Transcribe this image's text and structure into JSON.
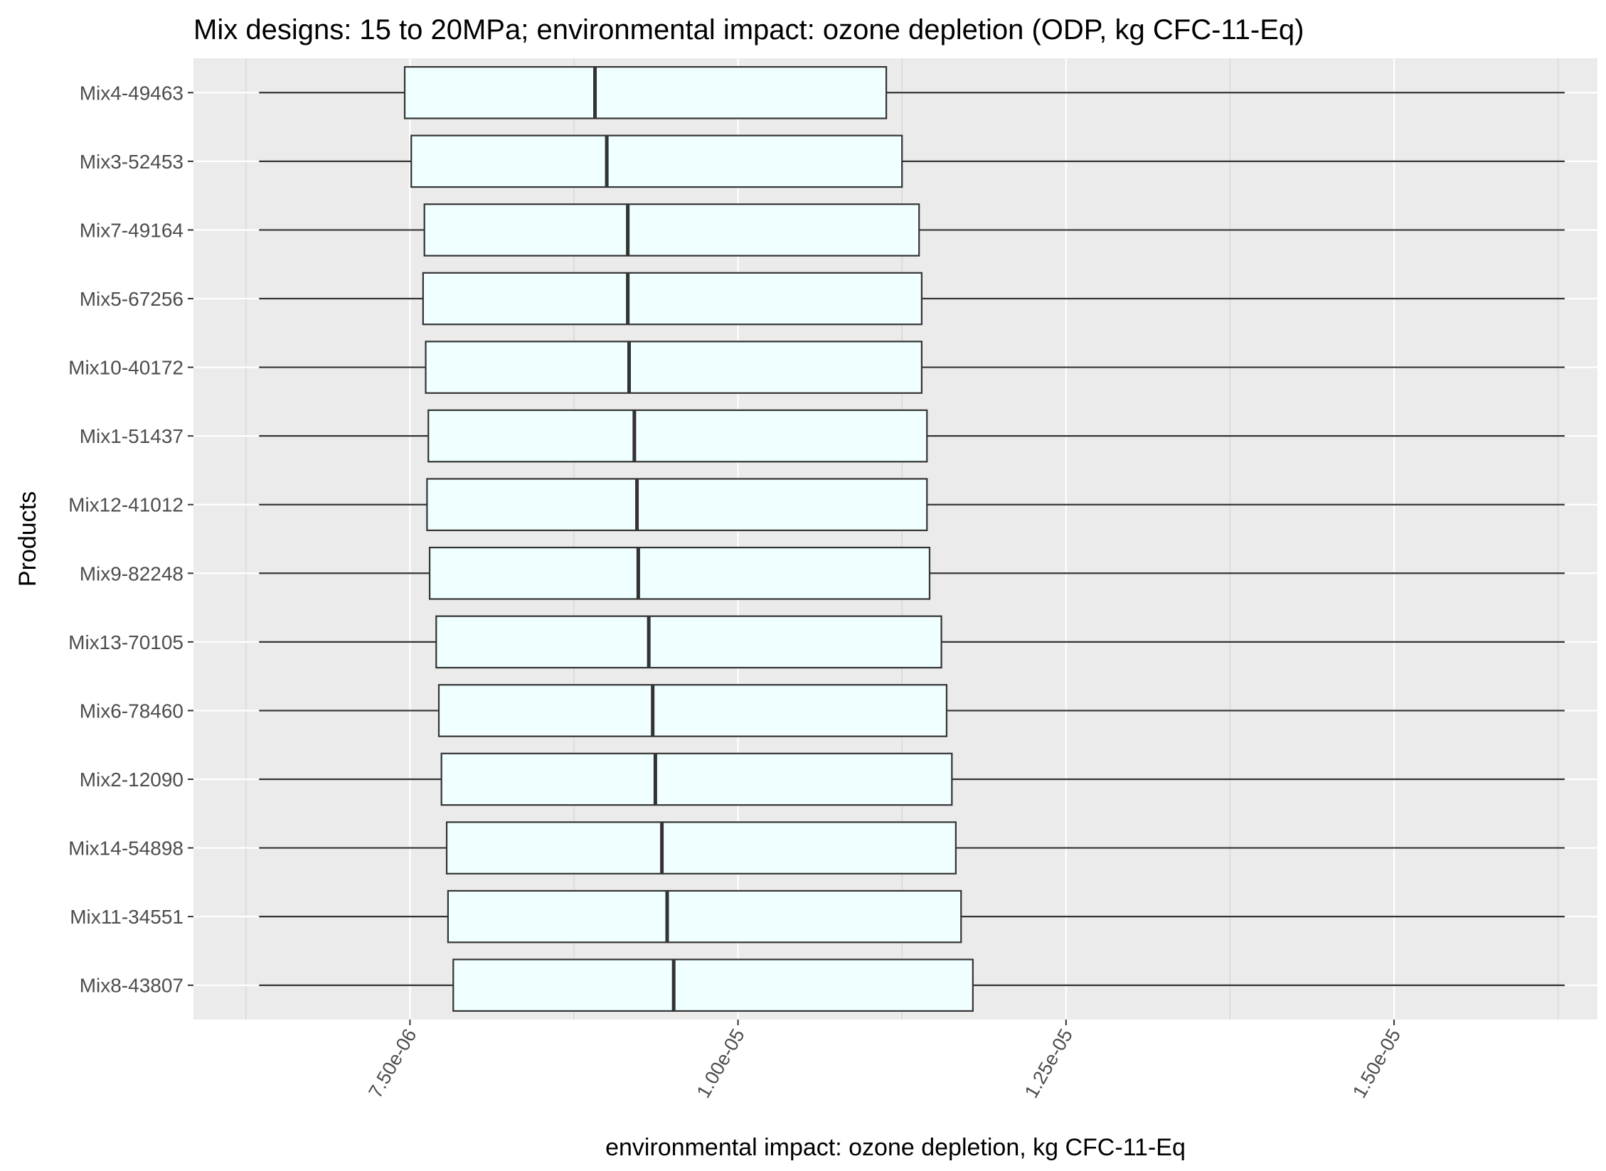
{
  "chart_data": {
    "type": "boxplot",
    "orientation": "horizontal",
    "title": "Mix designs: 15 to 20MPa; environmental impact: ozone depletion (ODP, kg CFC-11-Eq)",
    "xlabel": "environmental impact: ozone depletion, kg CFC-11-Eq",
    "ylabel": "Products",
    "xlim": [
      5.85e-06,
      1.655e-05
    ],
    "x_ticks": [
      {
        "value": 7.5e-06,
        "label": "7.50e-06"
      },
      {
        "value": 1e-05,
        "label": "1.00e-05"
      },
      {
        "value": 1.25e-05,
        "label": "1.25e-05"
      },
      {
        "value": 1.5e-05,
        "label": "1.50e-05"
      }
    ],
    "x_minor_ticks": [
      6.25e-06,
      8.75e-06,
      1.125e-05,
      1.375e-05,
      1.625e-05
    ],
    "grid": true,
    "box_fill": "#f0ffff",
    "panel_background": "#ebebeb",
    "products": [
      {
        "name": "Mix4-49463",
        "min": 6.35e-06,
        "q1": 7.46e-06,
        "median": 8.91e-06,
        "q3": 1.113e-05,
        "max": 1.63e-05
      },
      {
        "name": "Mix3-52453",
        "min": 6.35e-06,
        "q1": 7.51e-06,
        "median": 9e-06,
        "q3": 1.125e-05,
        "max": 1.63e-05
      },
      {
        "name": "Mix7-49164",
        "min": 6.35e-06,
        "q1": 7.61e-06,
        "median": 9.16e-06,
        "q3": 1.138e-05,
        "max": 1.63e-05
      },
      {
        "name": "Mix5-67256",
        "min": 6.35e-06,
        "q1": 7.6e-06,
        "median": 9.16e-06,
        "q3": 1.14e-05,
        "max": 1.63e-05
      },
      {
        "name": "Mix10-40172",
        "min": 6.35e-06,
        "q1": 7.62e-06,
        "median": 9.17e-06,
        "q3": 1.14e-05,
        "max": 1.63e-05
      },
      {
        "name": "Mix1-51437",
        "min": 6.35e-06,
        "q1": 7.64e-06,
        "median": 9.21e-06,
        "q3": 1.144e-05,
        "max": 1.63e-05
      },
      {
        "name": "Mix12-41012",
        "min": 6.35e-06,
        "q1": 7.63e-06,
        "median": 9.23e-06,
        "q3": 1.144e-05,
        "max": 1.63e-05
      },
      {
        "name": "Mix9-82248",
        "min": 6.35e-06,
        "q1": 7.65e-06,
        "median": 9.24e-06,
        "q3": 1.146e-05,
        "max": 1.63e-05
      },
      {
        "name": "Mix13-70105",
        "min": 6.35e-06,
        "q1": 7.7e-06,
        "median": 9.32e-06,
        "q3": 1.155e-05,
        "max": 1.63e-05
      },
      {
        "name": "Mix6-78460",
        "min": 6.35e-06,
        "q1": 7.72e-06,
        "median": 9.35e-06,
        "q3": 1.159e-05,
        "max": 1.63e-05
      },
      {
        "name": "Mix2-12090",
        "min": 6.35e-06,
        "q1": 7.74e-06,
        "median": 9.37e-06,
        "q3": 1.163e-05,
        "max": 1.63e-05
      },
      {
        "name": "Mix14-54898",
        "min": 6.35e-06,
        "q1": 7.78e-06,
        "median": 9.42e-06,
        "q3": 1.166e-05,
        "max": 1.63e-05
      },
      {
        "name": "Mix11-34551",
        "min": 6.35e-06,
        "q1": 7.79e-06,
        "median": 9.46e-06,
        "q3": 1.17e-05,
        "max": 1.63e-05
      },
      {
        "name": "Mix8-43807",
        "min": 6.35e-06,
        "q1": 7.83e-06,
        "median": 9.51e-06,
        "q3": 1.179e-05,
        "max": 1.63e-05
      }
    ]
  }
}
